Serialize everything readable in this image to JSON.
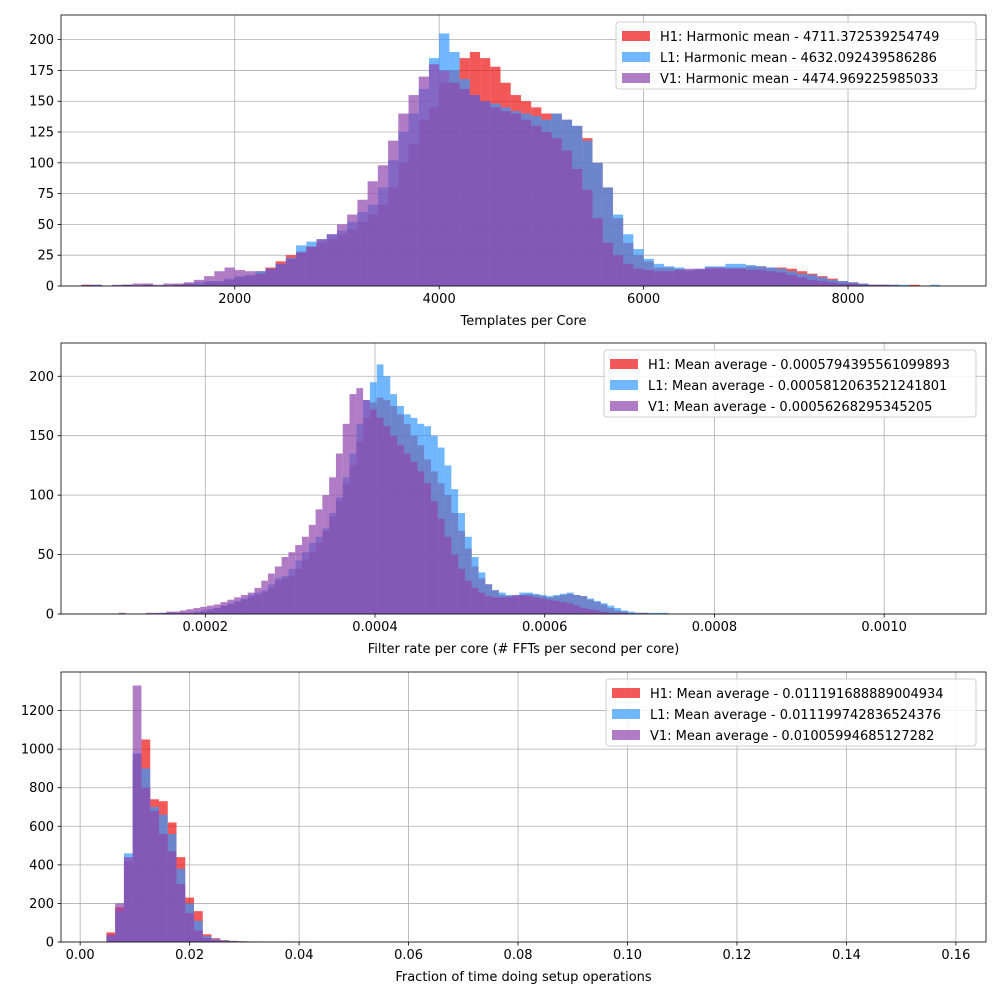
{
  "colors": {
    "H1": "#ee1111",
    "L1": "#3399ff",
    "V1": "#8e44ad",
    "grid": "#b0b0b0"
  },
  "chart_data": [
    {
      "type": "histogram",
      "xlabel": "Templates per Core",
      "ylabel": "",
      "xlim": [
        300,
        9350
      ],
      "ylim": [
        0,
        220
      ],
      "xticks": [
        {
          "value": 2000,
          "label": "2000"
        },
        {
          "value": 4000,
          "label": "4000"
        },
        {
          "value": 6000,
          "label": "6000"
        },
        {
          "value": 8000,
          "label": "8000"
        }
      ],
      "yticks": [
        {
          "value": 0,
          "label": "0"
        },
        {
          "value": 25,
          "label": "25"
        },
        {
          "value": 50,
          "label": "50"
        },
        {
          "value": 75,
          "label": "75"
        },
        {
          "value": 100,
          "label": "100"
        },
        {
          "value": 125,
          "label": "125"
        },
        {
          "value": 150,
          "label": "150"
        },
        {
          "value": 175,
          "label": "175"
        },
        {
          "value": 200,
          "label": "200"
        }
      ],
      "grid": true,
      "legend_position": "top-right",
      "bin_edges": {
        "start": 500,
        "width": 100
      },
      "series": [
        {
          "name": "H1: Harmonic mean  - 4711.372539254749",
          "color_key": "H1",
          "values": [
            1,
            0,
            0,
            0,
            1,
            0,
            1,
            0,
            0,
            1,
            2,
            1,
            3,
            3,
            5,
            7,
            8,
            12,
            15,
            20,
            25,
            28,
            32,
            35,
            38,
            42,
            46,
            52,
            58,
            66,
            80,
            100,
            115,
            135,
            145,
            165,
            175,
            185,
            190,
            185,
            178,
            165,
            155,
            150,
            145,
            140,
            140,
            135,
            130,
            120,
            100,
            80,
            55,
            35,
            25,
            20,
            15,
            15,
            14,
            12,
            13,
            14,
            14,
            15,
            15,
            16,
            16,
            15,
            15,
            14,
            12,
            10,
            8,
            6,
            4,
            3,
            2,
            1,
            1,
            1,
            0,
            1,
            0,
            0,
            0,
            0
          ]
        },
        {
          "name": "L1: Harmonic mean  - 4632.092439586286",
          "color_key": "L1",
          "values": [
            0,
            1,
            0,
            0,
            1,
            0,
            1,
            0,
            0,
            1,
            2,
            3,
            4,
            4,
            6,
            8,
            9,
            12,
            14,
            18,
            23,
            33,
            36,
            38,
            42,
            45,
            52,
            60,
            66,
            80,
            102,
            125,
            140,
            160,
            185,
            205,
            190,
            168,
            155,
            150,
            148,
            145,
            142,
            140,
            138,
            135,
            140,
            135,
            130,
            118,
            100,
            80,
            58,
            42,
            30,
            22,
            18,
            16,
            15,
            13,
            14,
            16,
            16,
            18,
            18,
            17,
            16,
            15,
            14,
            12,
            10,
            9,
            7,
            5,
            4,
            3,
            2,
            1,
            1,
            1,
            1,
            0,
            0,
            1,
            0,
            0
          ]
        },
        {
          "name": "V1: Harmonic mean  - 4474.969225985033",
          "color_key": "V1",
          "values": [
            1,
            1,
            0,
            1,
            1,
            2,
            2,
            1,
            2,
            2,
            3,
            5,
            8,
            12,
            15,
            13,
            12,
            10,
            14,
            18,
            22,
            27,
            32,
            38,
            42,
            50,
            58,
            70,
            85,
            98,
            118,
            140,
            155,
            170,
            180,
            175,
            165,
            160,
            155,
            150,
            145,
            142,
            140,
            135,
            130,
            125,
            120,
            110,
            95,
            78,
            55,
            35,
            25,
            18,
            14,
            13,
            12,
            12,
            13,
            14,
            14,
            15,
            15,
            14,
            14,
            13,
            13,
            12,
            11,
            9,
            7,
            5,
            4,
            3,
            2,
            2,
            1,
            1,
            1,
            0,
            0,
            0,
            0,
            0,
            0,
            0
          ]
        }
      ]
    },
    {
      "type": "histogram",
      "xlabel": "Filter rate per core (# FFTs per second per core)",
      "ylabel": "",
      "xlim": [
        3e-05,
        0.00112
      ],
      "ylim": [
        0,
        228
      ],
      "xticks": [
        {
          "value": 0.0002,
          "label": "0.0002"
        },
        {
          "value": 0.0004,
          "label": "0.0004"
        },
        {
          "value": 0.0006,
          "label": "0.0006"
        },
        {
          "value": 0.0008,
          "label": "0.0008"
        },
        {
          "value": 0.001,
          "label": "0.0010"
        }
      ],
      "yticks": [
        {
          "value": 0,
          "label": "0"
        },
        {
          "value": 50,
          "label": "50"
        },
        {
          "value": 100,
          "label": "100"
        },
        {
          "value": 150,
          "label": "150"
        },
        {
          "value": 200,
          "label": "200"
        }
      ],
      "grid": true,
      "legend_position": "top-right",
      "bin_edges": {
        "start": 5e-05,
        "width": 8e-06
      },
      "series": [
        {
          "name": "H1: Mean average - 0.0005794395561099893",
          "color_key": "H1",
          "values": [
            0,
            0,
            0,
            0,
            0,
            0,
            0,
            0,
            0,
            0,
            0,
            0,
            0,
            1,
            1,
            1,
            1,
            1,
            2,
            3,
            5,
            7,
            8,
            10,
            12,
            14,
            16,
            18,
            22,
            28,
            30,
            32,
            38,
            46,
            52,
            60,
            70,
            82,
            95,
            110,
            125,
            145,
            165,
            178,
            182,
            180,
            175,
            168,
            160,
            150,
            142,
            130,
            120,
            110,
            100,
            85,
            70,
            55,
            40,
            30,
            25,
            20,
            16,
            14,
            14,
            16,
            17,
            16,
            15,
            14,
            15,
            16,
            17,
            16,
            15,
            12,
            10,
            8,
            5,
            3,
            2,
            1,
            1,
            1,
            0,
            0,
            0,
            0,
            0,
            0,
            0,
            0,
            0,
            0,
            0,
            0,
            0,
            0,
            0,
            0,
            0,
            0,
            0,
            0,
            0,
            0,
            0,
            0,
            0,
            0,
            0,
            0,
            0,
            0,
            0,
            0,
            0,
            0,
            0,
            0,
            0,
            0,
            0,
            0,
            0,
            0,
            0,
            0,
            0,
            0,
            0,
            0,
            0,
            0,
            0,
            0,
            0
          ]
        },
        {
          "name": "L1: Mean average - 0.0005812063521241801",
          "color_key": "L1",
          "values": [
            0,
            0,
            0,
            0,
            0,
            0,
            0,
            0,
            0,
            0,
            0,
            0,
            1,
            1,
            1,
            1,
            1,
            2,
            3,
            4,
            5,
            7,
            9,
            11,
            13,
            16,
            18,
            20,
            25,
            30,
            32,
            38,
            45,
            52,
            60,
            65,
            72,
            85,
            98,
            115,
            135,
            160,
            180,
            195,
            210,
            200,
            185,
            175,
            168,
            165,
            160,
            158,
            150,
            140,
            125,
            105,
            85,
            65,
            48,
            35,
            25,
            20,
            18,
            16,
            16,
            18,
            18,
            17,
            16,
            15,
            16,
            17,
            18,
            16,
            15,
            13,
            11,
            9,
            7,
            5,
            3,
            2,
            1,
            1,
            1,
            1,
            1,
            0,
            0,
            0,
            0,
            0,
            0,
            0,
            0,
            0,
            0,
            0,
            0,
            0,
            0,
            0,
            0,
            0,
            0,
            0,
            0,
            0,
            0,
            0,
            0,
            0,
            0,
            0,
            0,
            0,
            0,
            0,
            0,
            0,
            0,
            0,
            0,
            0,
            0,
            0,
            0,
            0,
            0,
            0,
            0,
            0,
            0,
            0,
            0,
            0,
            0
          ]
        },
        {
          "name": "V1: Mean average - 0.00056268295345205",
          "color_key": "V1",
          "values": [
            0,
            0,
            0,
            0,
            0,
            0,
            1,
            0,
            0,
            0,
            1,
            1,
            1,
            2,
            2,
            3,
            4,
            5,
            6,
            7,
            8,
            10,
            12,
            14,
            16,
            18,
            22,
            28,
            34,
            40,
            48,
            52,
            58,
            65,
            75,
            88,
            100,
            115,
            135,
            160,
            185,
            190,
            180,
            172,
            165,
            158,
            150,
            142,
            135,
            128,
            120,
            110,
            95,
            80,
            65,
            50,
            38,
            28,
            22,
            18,
            15,
            14,
            14,
            15,
            16,
            16,
            15,
            14,
            13,
            12,
            11,
            10,
            9,
            7,
            5,
            4,
            3,
            2,
            1,
            1,
            1,
            0,
            0,
            0,
            0,
            0,
            0,
            0,
            0,
            0,
            0,
            0,
            0,
            0,
            0,
            0,
            0,
            0,
            0,
            0,
            0,
            0,
            0,
            0,
            0,
            0,
            0,
            0,
            0,
            0,
            0,
            0,
            0,
            0,
            0,
            0,
            0,
            0,
            0,
            0,
            0,
            0,
            0,
            0,
            0,
            0,
            0,
            0,
            0,
            0,
            0,
            0,
            0,
            0,
            0,
            0,
            0
          ]
        }
      ]
    },
    {
      "type": "histogram",
      "xlabel": "Fraction of time doing setup operations",
      "ylabel": "",
      "xlim": [
        -0.0035,
        0.1655
      ],
      "ylim": [
        0,
        1400
      ],
      "xticks": [
        {
          "value": 0.0,
          "label": "0.00"
        },
        {
          "value": 0.02,
          "label": "0.02"
        },
        {
          "value": 0.04,
          "label": "0.04"
        },
        {
          "value": 0.06,
          "label": "0.06"
        },
        {
          "value": 0.08,
          "label": "0.08"
        },
        {
          "value": 0.1,
          "label": "0.10"
        },
        {
          "value": 0.12,
          "label": "0.12"
        },
        {
          "value": 0.14,
          "label": "0.14"
        },
        {
          "value": 0.16,
          "label": "0.16"
        }
      ],
      "yticks": [
        {
          "value": 0,
          "label": "0"
        },
        {
          "value": 200,
          "label": "200"
        },
        {
          "value": 400,
          "label": "400"
        },
        {
          "value": 600,
          "label": "600"
        },
        {
          "value": 800,
          "label": "800"
        },
        {
          "value": 1000,
          "label": "1000"
        },
        {
          "value": 1200,
          "label": "1200"
        }
      ],
      "grid": true,
      "legend_position": "top-right",
      "bin_edges": {
        "start": 0.0048,
        "width": 0.0016
      },
      "series": [
        {
          "name": "H1: Mean average - 0.011191688889004934",
          "color_key": "H1",
          "values": [
            50,
            180,
            420,
            970,
            1050,
            740,
            730,
            620,
            440,
            230,
            160,
            40,
            20,
            10,
            6,
            4,
            3,
            2,
            1,
            1,
            1,
            1,
            1,
            1,
            0,
            0,
            0,
            0,
            0,
            0
          ]
        },
        {
          "name": "L1: Mean average - 0.011199742836524376",
          "color_key": "L1",
          "values": [
            30,
            160,
            460,
            980,
            900,
            700,
            660,
            560,
            380,
            200,
            110,
            30,
            15,
            8,
            5,
            3,
            2,
            1,
            1,
            1,
            0,
            0,
            0,
            0,
            1,
            0,
            0,
            0,
            0,
            0
          ]
        },
        {
          "name": "V1: Mean average - 0.01005994685127282",
          "color_key": "V1",
          "values": [
            40,
            200,
            440,
            1330,
            800,
            680,
            560,
            470,
            300,
            150,
            60,
            20,
            10,
            5,
            3,
            2,
            1,
            1,
            0,
            0,
            0,
            0,
            0,
            0,
            0,
            0,
            0,
            0,
            0,
            0
          ]
        }
      ]
    }
  ]
}
